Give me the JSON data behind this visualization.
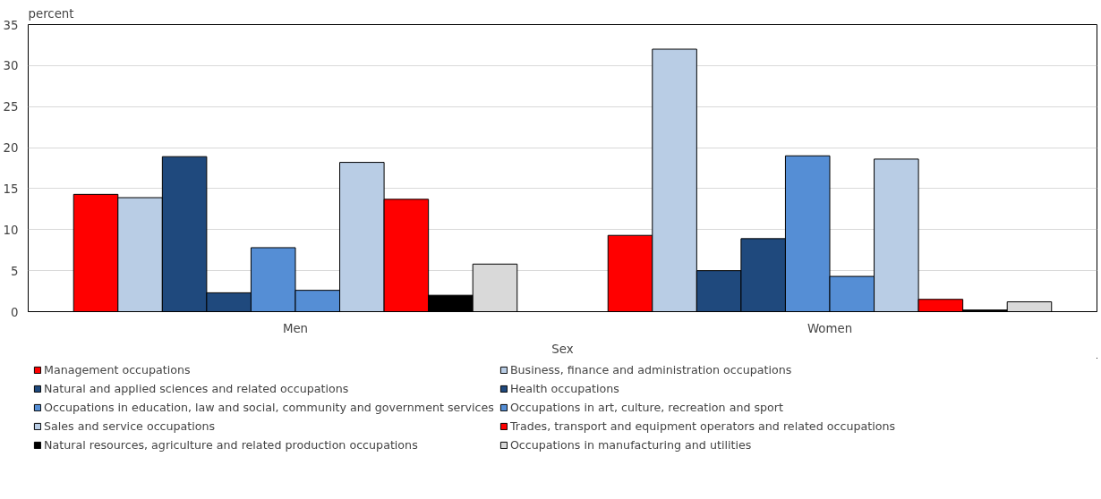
{
  "chart_data": {
    "type": "bar",
    "xlabel": "Sex",
    "ylabel": "percent",
    "categories": [
      "Men",
      "Women"
    ],
    "series": [
      {
        "name": "Management occupations",
        "color": "#ff0000",
        "values": [
          14.3,
          9.3
        ]
      },
      {
        "name": "Business, finance and administration occupations",
        "color": "#b9cde5",
        "values": [
          13.9,
          32.0
        ]
      },
      {
        "name": "Natural and applied sciences and related occupations",
        "color": "#1f497d",
        "values": [
          18.9,
          5.0
        ]
      },
      {
        "name": "Health occupations",
        "color": "#1f497d",
        "values": [
          2.3,
          8.9
        ]
      },
      {
        "name": "Occupations in education, law and social, community and government services",
        "color": "#558ed5",
        "values": [
          7.8,
          19.0
        ]
      },
      {
        "name": "Occupations in art, culture, recreation and sport",
        "color": "#558ed5",
        "values": [
          2.6,
          4.3
        ]
      },
      {
        "name": "Sales and service occupations",
        "color": "#b9cde5",
        "values": [
          18.2,
          18.6
        ]
      },
      {
        "name": "Trades, transport and equipment operators and related occupations",
        "color": "#ff0000",
        "values": [
          13.7,
          1.5
        ]
      },
      {
        "name": "Natural resources, agriculture and related production occupations",
        "color": "#000000",
        "values": [
          2.0,
          0.2
        ]
      },
      {
        "name": "Occupations in manufacturing and utilities",
        "color": "#d9d9d9",
        "values": [
          5.8,
          1.2
        ]
      }
    ],
    "ylim": [
      0,
      35
    ],
    "yticks": [
      0,
      5,
      10,
      15,
      20,
      25,
      30,
      35
    ],
    "grid": "y",
    "legend": "bottom"
  }
}
